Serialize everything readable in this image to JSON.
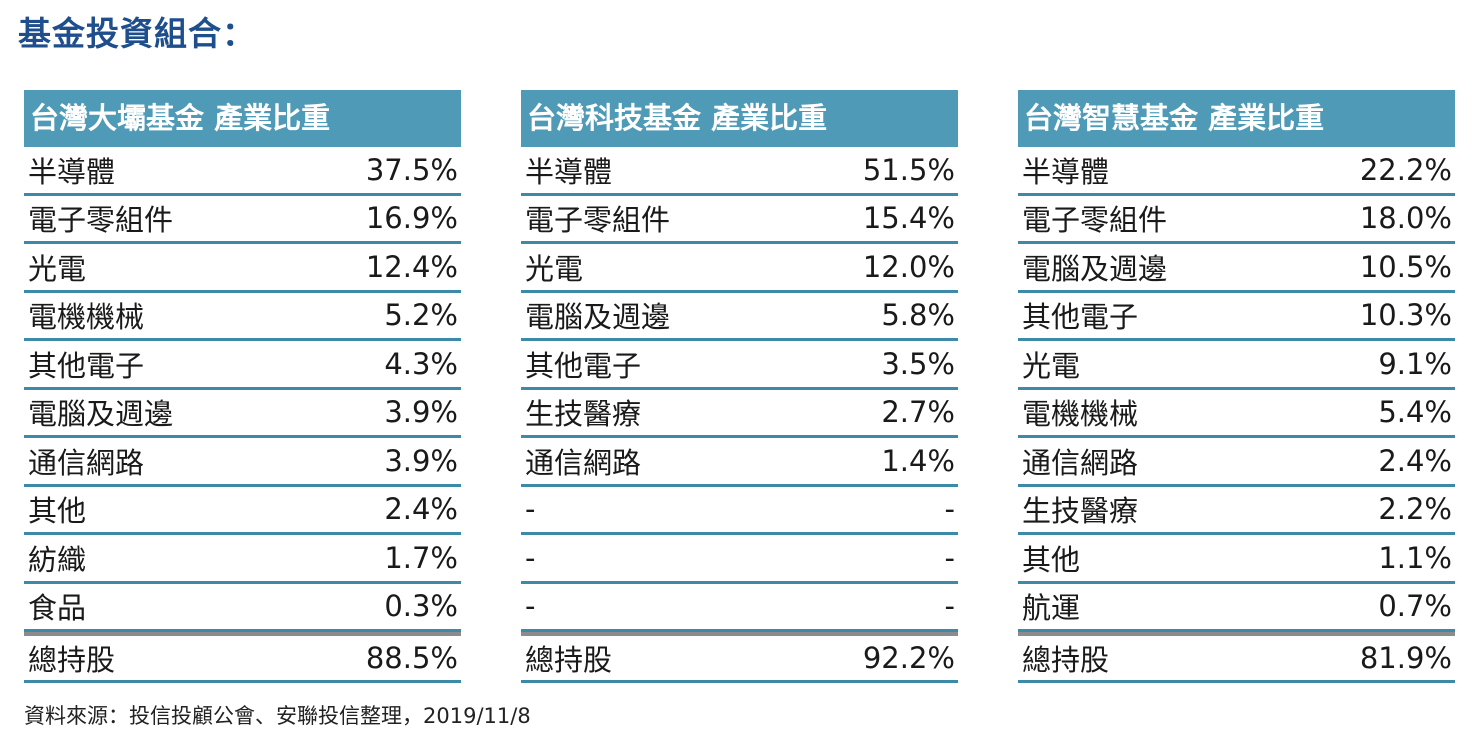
{
  "title": "基金投資組合：",
  "tables": [
    {
      "header": "台灣大壩基金 產業比重",
      "rows": [
        {
          "category": "半導體",
          "value": "37.5%"
        },
        {
          "category": "電子零組件",
          "value": "16.9%"
        },
        {
          "category": "光電",
          "value": "12.4%"
        },
        {
          "category": "電機機械",
          "value": "5.2%"
        },
        {
          "category": "其他電子",
          "value": "4.3%"
        },
        {
          "category": "電腦及週邊",
          "value": "3.9%"
        },
        {
          "category": "通信網路",
          "value": "3.9%"
        },
        {
          "category": "其他",
          "value": "2.4%"
        },
        {
          "category": "紡織",
          "value": "1.7%"
        },
        {
          "category": "食品",
          "value": "0.3%"
        }
      ],
      "total": {
        "category": "總持股",
        "value": "88.5%"
      }
    },
    {
      "header": "台灣科技基金 產業比重",
      "rows": [
        {
          "category": "半導體",
          "value": "51.5%"
        },
        {
          "category": "電子零組件",
          "value": "15.4%"
        },
        {
          "category": "光電",
          "value": "12.0%"
        },
        {
          "category": "電腦及週邊",
          "value": "5.8%"
        },
        {
          "category": "其他電子",
          "value": "3.5%"
        },
        {
          "category": "生技醫療",
          "value": "2.7%"
        },
        {
          "category": "通信網路",
          "value": "1.4%"
        },
        {
          "category": "-",
          "value": "-"
        },
        {
          "category": "-",
          "value": "-"
        },
        {
          "category": "-",
          "value": "-"
        }
      ],
      "total": {
        "category": "總持股",
        "value": "92.2%"
      }
    },
    {
      "header": "台灣智慧基金 產業比重",
      "rows": [
        {
          "category": "半導體",
          "value": "22.2%"
        },
        {
          "category": "電子零組件",
          "value": "18.0%"
        },
        {
          "category": "電腦及週邊",
          "value": "10.5%"
        },
        {
          "category": "其他電子",
          "value": "10.3%"
        },
        {
          "category": "光電",
          "value": "9.1%"
        },
        {
          "category": "電機機械",
          "value": "5.4%"
        },
        {
          "category": "通信網路",
          "value": "2.4%"
        },
        {
          "category": "生技醫療",
          "value": "2.2%"
        },
        {
          "category": "其他",
          "value": "1.1%"
        },
        {
          "category": "航運",
          "value": "0.7%"
        }
      ],
      "total": {
        "category": "總持股",
        "value": "81.9%"
      }
    }
  ],
  "source": "資料來源：投信投顧公會、安聯投信整理，2019/11/8",
  "colors": {
    "title": "#1f4e8c",
    "header_bg": "#4f9ab7",
    "row_border": "#3d8aa8",
    "total_border": "#8c8c8c"
  }
}
